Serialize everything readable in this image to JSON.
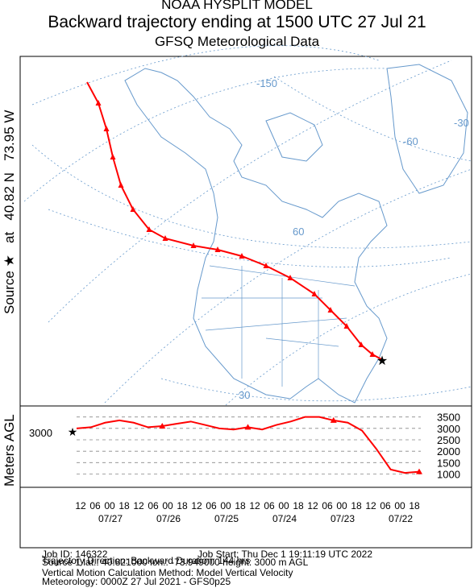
{
  "header": {
    "line1": "NOAA HYSPLIT MODEL",
    "line2": "Backward trajectory ending at 1500 UTC 27 Jul 21",
    "line3": "GFSQ Meteorological Data"
  },
  "source_label": {
    "prefix": "Source",
    "star": "★",
    "at": "at",
    "lat": "40.82 N",
    "lon": "73.95 W"
  },
  "map": {
    "meridian_labels": [
      "-150",
      "-30",
      "-60"
    ],
    "parallel_labels": [
      "60",
      "30"
    ]
  },
  "vertical_axis_label": "Meters AGL",
  "start_height_label": "3000",
  "colors": {
    "trajectory": "#ff0000",
    "map_lines": "#6699cc",
    "grid": "#888888"
  },
  "chart_data": {
    "type": "line",
    "title": "Backward trajectory ending at 1500 UTC 27 Jul 21",
    "ylabel": "Meters AGL",
    "ylim": [
      700,
      3700
    ],
    "yticks": [
      1000,
      1500,
      2000,
      2500,
      3000,
      3500
    ],
    "x_hours_before_end": [
      0,
      6,
      12,
      18,
      24,
      30,
      36,
      42,
      48,
      54,
      60,
      66,
      72,
      78,
      84,
      90,
      96,
      102,
      108,
      114,
      120,
      126,
      132,
      138,
      144
    ],
    "series": [
      {
        "values": [
          3000,
          3050,
          3250,
          3350,
          3250,
          3050,
          3100,
          3200,
          3300,
          3150,
          3000,
          2950,
          3050,
          2950,
          3150,
          3300,
          3500,
          3500,
          3350,
          3250,
          2900,
          2100,
          1200,
          1050,
          1100
        ]
      }
    ],
    "time_tick_labels": [
      "12",
      "06",
      "00",
      "18",
      "12",
      "06",
      "00",
      "18",
      "12",
      "06",
      "00",
      "18",
      "12",
      "06",
      "00",
      "18",
      "12",
      "06",
      "00",
      "18",
      "12",
      "06",
      "00",
      "18"
    ],
    "date_labels": [
      "07/27",
      "07/26",
      "07/25",
      "07/24",
      "07/23",
      "07/22"
    ]
  },
  "job_info": {
    "job_id": "Job ID: 146322",
    "job_start": "Job Start: Thu Dec  1 19:11:19 UTC 2022",
    "source": "Source 1      lat.: 40.821000    lon.: -73.949000     height: 3000 m AGL",
    "direction": "Trajectory Direction: Backward      Duration: 144 hrs",
    "vertical": "Vertical Motion Calculation Method:        Model Vertical Velocity",
    "meteorology": "Meteorology: 0000Z 27 Jul 2021 - GFS0p25"
  }
}
